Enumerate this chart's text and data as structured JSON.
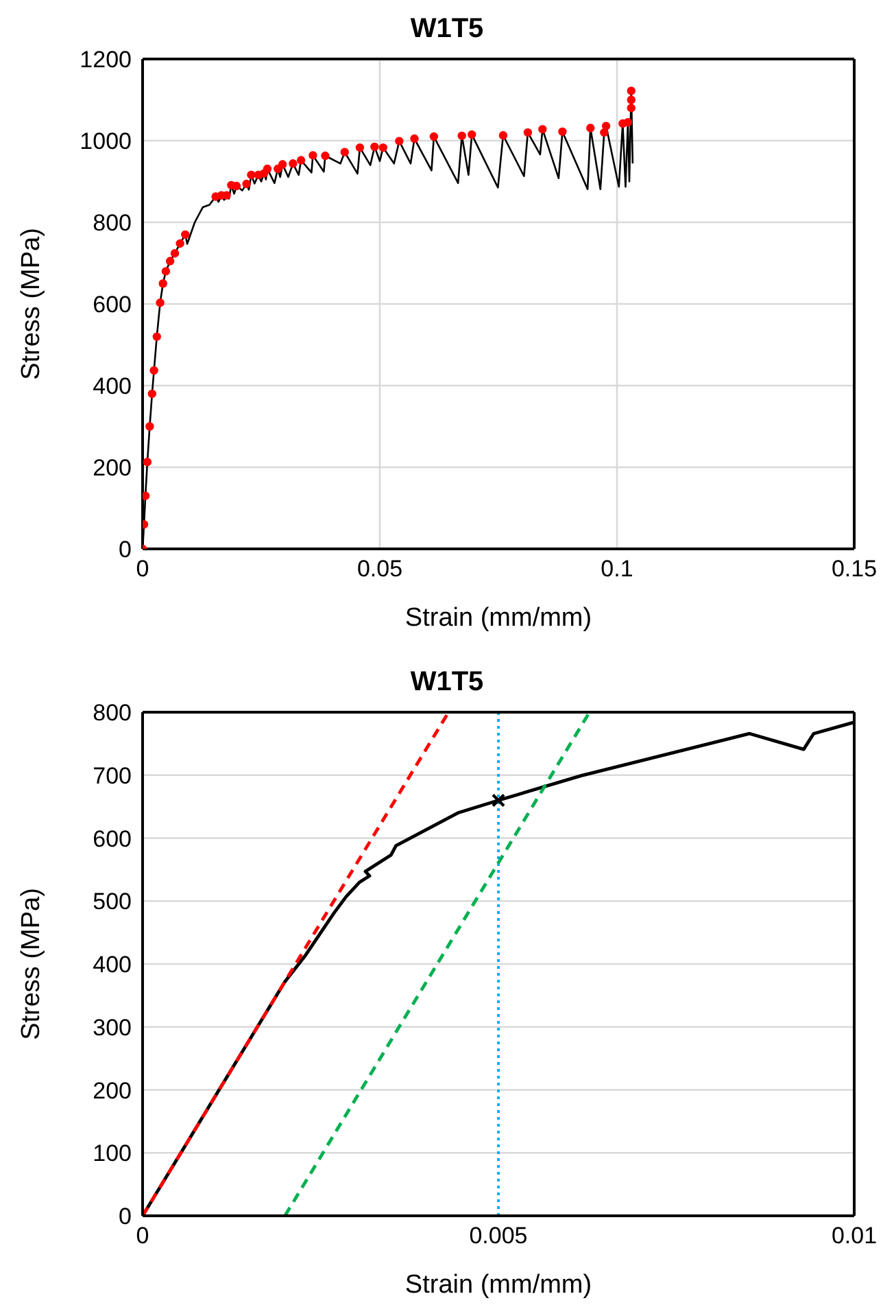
{
  "chart_data": [
    {
      "type": "line",
      "title": "W1T5",
      "xlabel": "Strain (mm/mm)",
      "ylabel": "Stress (MPa)",
      "xlim": [
        0,
        0.15
      ],
      "xticks": [
        0,
        0.05,
        0.1,
        0.15
      ],
      "ylim": [
        0,
        1200
      ],
      "yticks": [
        0,
        200,
        400,
        600,
        800,
        1000,
        1200
      ],
      "grid": true,
      "series": [
        {
          "type": "line",
          "color": "#000000",
          "line_style": "solid",
          "x": [
            0,
            0.0003,
            0.0006,
            0.001,
            0.0015,
            0.002,
            0.0024,
            0.003,
            0.0037,
            0.0043,
            0.0049,
            0.0058,
            0.0068,
            0.0079,
            0.009,
            0.0094,
            0.011,
            0.0127,
            0.0141,
            0.0154,
            0.016,
            0.0166,
            0.0172,
            0.0177,
            0.0182,
            0.0187,
            0.0193,
            0.0198,
            0.021,
            0.0219,
            0.0224,
            0.0229,
            0.0236,
            0.0244,
            0.025,
            0.0256,
            0.026,
            0.0263,
            0.0278,
            0.0285,
            0.029,
            0.0295,
            0.0307,
            0.0317,
            0.0329,
            0.0334,
            0.0356,
            0.0359,
            0.0382,
            0.0385,
            0.0417,
            0.0426,
            0.0453,
            0.0458,
            0.048,
            0.0489,
            0.05,
            0.0507,
            0.053,
            0.0541,
            0.0565,
            0.0573,
            0.0609,
            0.0614,
            0.0665,
            0.0673,
            0.0687,
            0.0694,
            0.0749,
            0.076,
            0.0804,
            0.0812,
            0.0838,
            0.0843,
            0.0877,
            0.0885,
            0.0938,
            0.0944,
            0.0965,
            0.0973,
            0.0977,
            0.1004,
            0.1012,
            0.1018,
            0.1023,
            0.1026,
            0.103,
            0.1033
          ],
          "values": [
            0,
            60,
            130,
            213,
            300,
            380,
            437,
            520,
            603,
            650,
            680,
            705,
            724,
            748,
            770,
            747,
            800,
            837,
            843,
            863,
            850,
            866,
            855,
            866,
            858,
            891,
            870,
            889,
            878,
            894,
            880,
            916,
            895,
            916,
            900,
            920,
            905,
            931,
            896,
            931,
            911,
            942,
            911,
            944,
            916,
            952,
            922,
            964,
            924,
            963,
            944,
            972,
            919,
            983,
            940,
            985,
            950,
            983,
            944,
            999,
            944,
            1005,
            927,
            1010,
            896,
            1012,
            916,
            1015,
            885,
            1013,
            913,
            1020,
            966,
            1028,
            908,
            1022,
            881,
            1031,
            881,
            1020,
            1036,
            887,
            1042,
            887,
            1045,
            900,
            1122,
            944
          ]
        },
        {
          "type": "scatter",
          "color": "#ff0000",
          "marker": "circle",
          "x": [
            0,
            0.0003,
            0.0006,
            0.001,
            0.0015,
            0.002,
            0.0024,
            0.003,
            0.0037,
            0.0043,
            0.0049,
            0.0058,
            0.0068,
            0.0079,
            0.009,
            0.0154,
            0.0166,
            0.0177,
            0.0187,
            0.0198,
            0.0219,
            0.0229,
            0.0244,
            0.0256,
            0.0263,
            0.0285,
            0.0295,
            0.0317,
            0.0334,
            0.0359,
            0.0385,
            0.0426,
            0.0458,
            0.0489,
            0.0507,
            0.0541,
            0.0573,
            0.0614,
            0.0673,
            0.0694,
            0.076,
            0.0812,
            0.0843,
            0.0885,
            0.0944,
            0.0973,
            0.0977,
            0.1012,
            0.1023,
            0.103,
            0.103,
            0.103
          ],
          "values": [
            0,
            60,
            130,
            213,
            300,
            380,
            437,
            520,
            603,
            650,
            680,
            705,
            724,
            748,
            770,
            863,
            866,
            866,
            891,
            889,
            894,
            916,
            916,
            920,
            931,
            931,
            942,
            944,
            952,
            964,
            963,
            972,
            983,
            985,
            983,
            999,
            1005,
            1010,
            1012,
            1015,
            1013,
            1020,
            1028,
            1022,
            1031,
            1020,
            1036,
            1042,
            1045,
            1122,
            1100,
            1080
          ]
        }
      ]
    },
    {
      "type": "line",
      "title": "W1T5",
      "xlabel": "Strain (mm/mm)",
      "ylabel": "Stress (MPa)",
      "xlim": [
        0,
        0.01
      ],
      "xticks": [
        0,
        0.005,
        0.01
      ],
      "ylim": [
        0,
        800
      ],
      "yticks": [
        0,
        100,
        200,
        300,
        400,
        500,
        600,
        700,
        800
      ],
      "grid": "y",
      "ref_lines": [
        {
          "axis": "x",
          "value": 0.005,
          "color": "#00b0f0",
          "line_style": "dotted"
        }
      ],
      "series": [
        {
          "type": "line",
          "color": "#000000",
          "line_style": "solid",
          "x": [
            0,
            0.0005,
            0.001,
            0.0015,
            0.002,
            0.00229,
            0.00269,
            0.00286,
            0.00305,
            0.00319,
            0.00313,
            0.00349,
            0.00356,
            0.00443,
            0.005,
            0.00616,
            0.00853,
            0.00929,
            0.00943,
            0.01
          ],
          "values": [
            0,
            93,
            186,
            279,
            372,
            414,
            481,
            507,
            530,
            540,
            547,
            573,
            588,
            640,
            660,
            699,
            766,
            741,
            766,
            784
          ]
        },
        {
          "type": "line",
          "color": "#ff0000",
          "line_style": "dashed",
          "x": [
            0,
            0.0043
          ],
          "values": [
            0,
            800
          ]
        },
        {
          "type": "line",
          "color": "#00b050",
          "line_style": "dashed",
          "x": [
            0.002,
            0.00628
          ],
          "values": [
            0,
            800
          ]
        },
        {
          "type": "scatter",
          "color": "#000000",
          "marker": "cross",
          "x": [
            0.005
          ],
          "values": [
            660
          ]
        }
      ]
    }
  ]
}
